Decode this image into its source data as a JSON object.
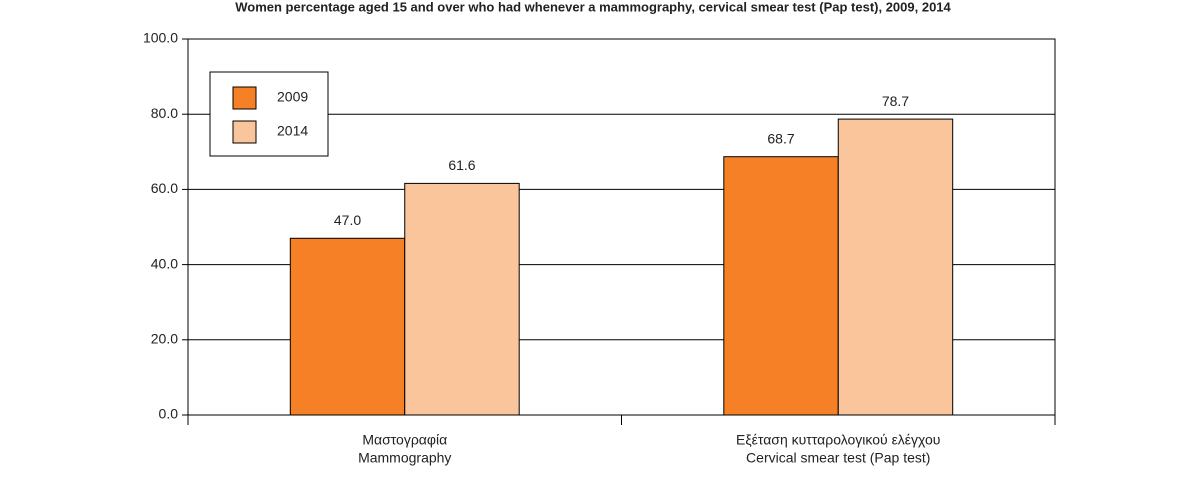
{
  "chart_data": {
    "type": "bar",
    "title": "Women percentage aged 15 and over who had whenever a mammography, cervical smear test (Pap test), 2009, 2014",
    "categories": [
      [
        "Μαστογραφία",
        "Mammography"
      ],
      [
        "Εξέταση κυτταρολογικού ελέγχου",
        "Cervical smear test (Pap test)"
      ]
    ],
    "series": [
      {
        "name": "2009",
        "color": "#f58025",
        "values": [
          47.0,
          68.7
        ],
        "value_labels": [
          "47.0",
          "68.7"
        ]
      },
      {
        "name": "2014",
        "color": "#fbc59c",
        "values": [
          61.6,
          78.7
        ],
        "value_labels": [
          "61.6",
          "78.7"
        ]
      }
    ],
    "ylim": [
      0,
      100
    ],
    "yticks": [
      {
        "value": 0,
        "label": "0.0"
      },
      {
        "value": 20,
        "label": "20.0"
      },
      {
        "value": 40,
        "label": "40.0"
      },
      {
        "value": 60,
        "label": "60.0"
      },
      {
        "value": 80,
        "label": "80.0"
      },
      {
        "value": 100,
        "label": "100.0"
      }
    ],
    "grid": true,
    "legend": "upper left"
  }
}
